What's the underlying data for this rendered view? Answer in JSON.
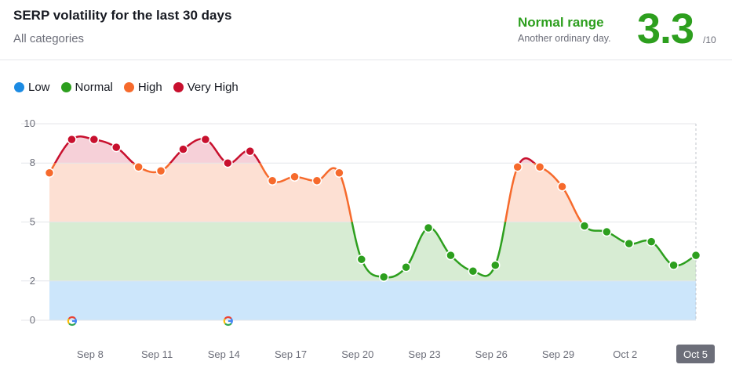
{
  "header": {
    "title": "SERP volatility for the last 30 days",
    "subtitle": "All categories",
    "range_label": "Normal range",
    "range_desc": "Another ordinary day.",
    "score": "3.3",
    "score_max": "/10"
  },
  "colors": {
    "low": "#1c8be3",
    "normal": "#2d9f1e",
    "high": "#f66a2c",
    "very_high": "#c8102e",
    "band_low": "#cce6fb",
    "band_normal": "#d7ecd3",
    "band_high": "#fde0d3",
    "band_very_high": "#f6d0d8"
  },
  "chart_data": {
    "type": "area",
    "title": "SERP volatility for the last 30 days",
    "legend": [
      "Low",
      "Normal",
      "High",
      "Very High"
    ],
    "legend_position": "top-left",
    "ylim": [
      0,
      10
    ],
    "yticks": [
      0,
      2,
      5,
      8,
      10
    ],
    "ytick_labels": [
      "0",
      "2",
      "5",
      "8",
      "10"
    ],
    "bands": [
      {
        "name": "Low",
        "from": 0,
        "to": 2
      },
      {
        "name": "Normal",
        "from": 2,
        "to": 5
      },
      {
        "name": "High",
        "from": 5,
        "to": 8
      },
      {
        "name": "Very High",
        "from": 8,
        "to": 10
      }
    ],
    "x": [
      "Sep 6",
      "Sep 7",
      "Sep 8",
      "Sep 9",
      "Sep 10",
      "Sep 11",
      "Sep 12",
      "Sep 13",
      "Sep 14",
      "Sep 15",
      "Sep 16",
      "Sep 17",
      "Sep 18",
      "Sep 19",
      "Sep 20",
      "Sep 21",
      "Sep 22",
      "Sep 23",
      "Sep 24",
      "Sep 25",
      "Sep 26",
      "Sep 27",
      "Sep 28",
      "Sep 29",
      "Sep 30",
      "Oct 1",
      "Oct 2",
      "Oct 3",
      "Oct 4",
      "Oct 5"
    ],
    "values": [
      7.5,
      9.2,
      9.2,
      8.8,
      7.8,
      7.6,
      8.7,
      9.2,
      8.0,
      8.6,
      7.1,
      7.3,
      7.1,
      7.5,
      3.1,
      2.2,
      2.7,
      4.7,
      3.3,
      2.5,
      2.8,
      7.8,
      7.8,
      6.8,
      4.8,
      4.5,
      3.9,
      4.0,
      2.8,
      3.3
    ],
    "xtick_labels": [
      "Sep 8",
      "Sep 11",
      "Sep 14",
      "Sep 17",
      "Sep 20",
      "Sep 23",
      "Sep 26",
      "Sep 29",
      "Oct 2",
      "Oct 5"
    ],
    "xtick_dates": [
      "Sep 8",
      "Sep 11",
      "Sep 14",
      "Sep 17",
      "Sep 20",
      "Sep 23",
      "Sep 26",
      "Sep 29",
      "Oct 2",
      "Oct 5"
    ],
    "selected_date": "Oct 5",
    "google_update_markers": [
      "Sep 7",
      "Sep 14"
    ]
  }
}
